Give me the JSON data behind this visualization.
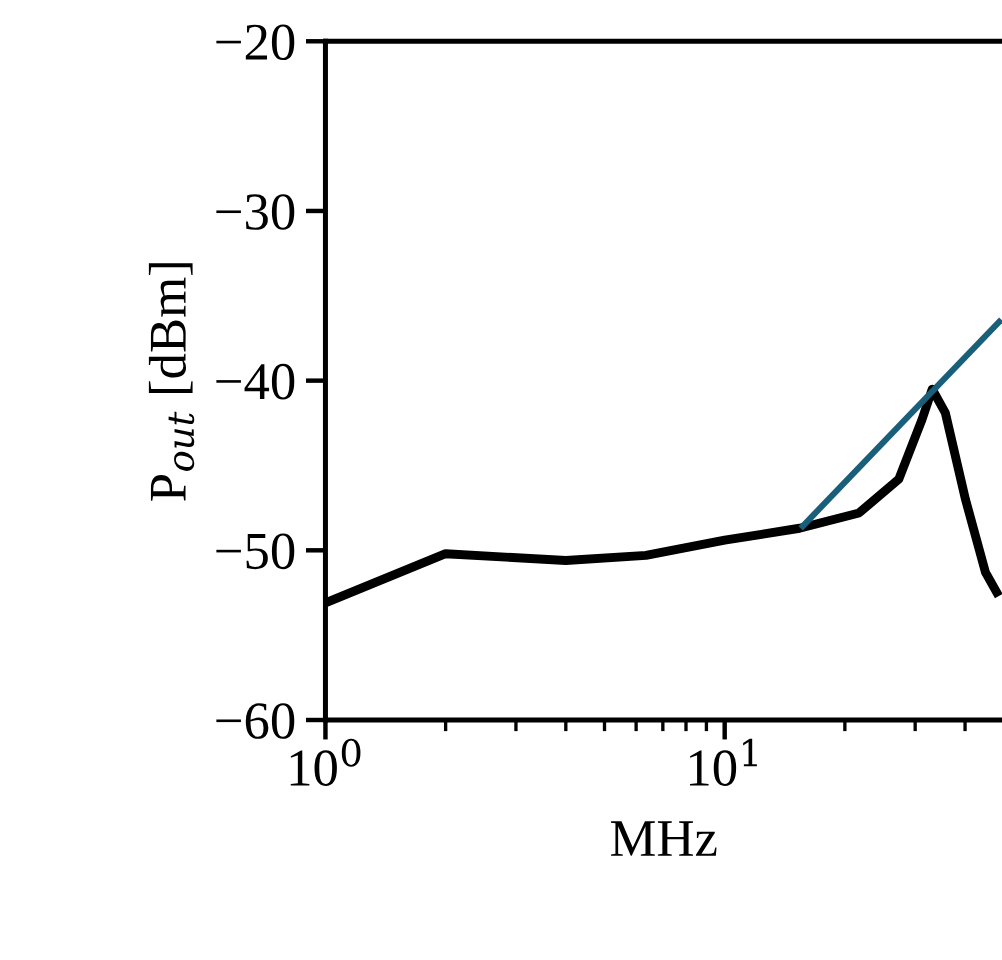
{
  "chart_data": {
    "type": "line",
    "xlabel": "MHz",
    "ylabel": "P$_{out}$ [dBm]",
    "log": "x",
    "xlim": [
      1,
      49.5
    ],
    "ylim": [
      -60,
      -20
    ],
    "xticks": [
      {
        "value": 1,
        "label": "10$^{0}$"
      },
      {
        "value": 2,
        "label": null
      },
      {
        "value": 3,
        "label": null
      },
      {
        "value": 4,
        "label": null
      },
      {
        "value": 5,
        "label": null
      },
      {
        "value": 6,
        "label": null
      },
      {
        "value": 7,
        "label": null
      },
      {
        "value": 8,
        "label": null
      },
      {
        "value": 9,
        "label": null
      },
      {
        "value": 10,
        "label": "10$^{1}$"
      },
      {
        "value": 20,
        "label": null
      },
      {
        "value": 30,
        "label": null
      },
      {
        "value": 40,
        "label": null
      }
    ],
    "yticks": [
      {
        "value": -60,
        "label": "−60"
      },
      {
        "value": -50,
        "label": "−50"
      },
      {
        "value": -40,
        "label": "−40"
      },
      {
        "value": -30,
        "label": "−30"
      },
      {
        "value": -20,
        "label": "−20"
      }
    ],
    "grid": false,
    "legend": false,
    "marker": "none",
    "line_style": "solid",
    "series": [
      {
        "color": "#000000",
        "x": [
          1,
          2.0,
          4.0,
          6.35,
          10,
          15.4,
          21.7,
          27.3,
          31.2,
          33.1,
          35.7,
          40.1,
          45,
          48.6
        ],
        "values": [
          -53.1,
          -50.2,
          -50.6,
          -50.3,
          -49.4,
          -48.7,
          -47.8,
          -45.8,
          -42.3,
          -40.5,
          -41.9,
          -47.0,
          -51.3,
          -52.7
        ]
      },
      {
        "color": "#1a5f7a",
        "x": [
          15.5,
          49.3
        ],
        "values": [
          -48.7,
          -36.4
        ]
      }
    ]
  }
}
